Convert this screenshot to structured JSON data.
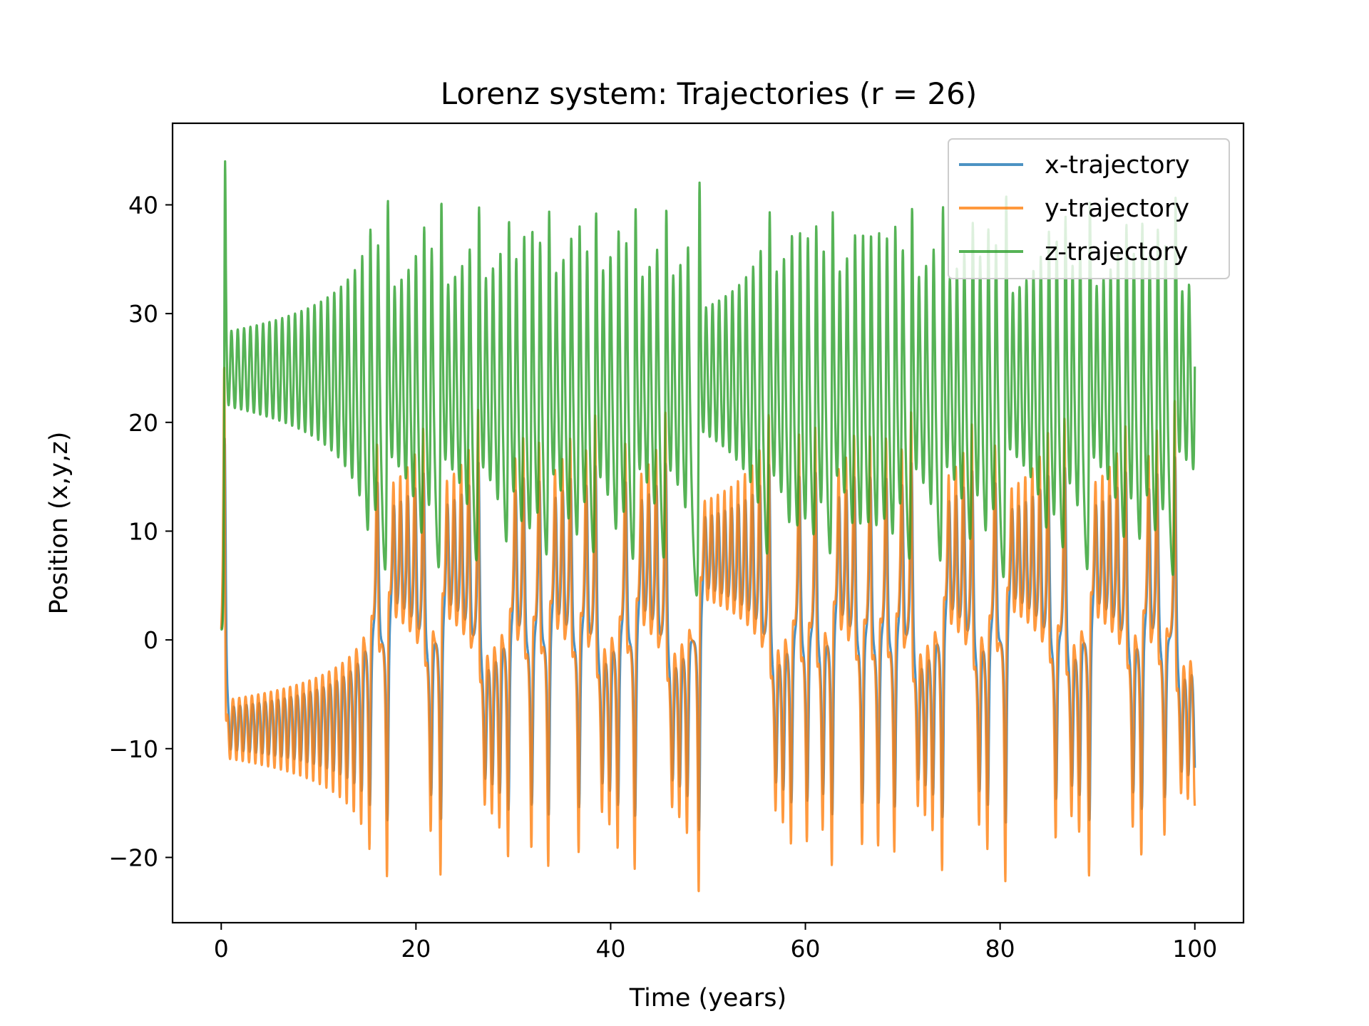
{
  "chart_data": {
    "type": "line",
    "title": "Lorenz system: Trajectories (r = 26)",
    "xlabel": "Time (years)",
    "ylabel": "Position (x,y,z)",
    "xlim": [
      -5,
      105
    ],
    "ylim": [
      -26,
      47.5
    ],
    "xticks": [
      0,
      20,
      40,
      60,
      80,
      100
    ],
    "yticks": [
      -20,
      -10,
      0,
      10,
      20,
      30,
      40
    ],
    "xtick_labels": [
      "0",
      "20",
      "40",
      "60",
      "80",
      "100"
    ],
    "ytick_labels": [
      "−20",
      "−10",
      "0",
      "10",
      "20",
      "30",
      "40"
    ],
    "grid": false,
    "legend_position": "top-right",
    "series": [
      {
        "name": "x-trajectory",
        "color": "#1f77b4"
      },
      {
        "name": "y-trajectory",
        "color": "#ff7f0e"
      },
      {
        "name": "z-trajectory",
        "color": "#2ca02c"
      }
    ],
    "t_range": [
      0,
      100
    ],
    "switch_times": [
      15.3,
      16.9,
      20.8,
      25.8,
      30.4,
      31.9,
      35.3,
      40.3,
      41.8,
      45.3,
      48.3,
      51.5,
      55.1,
      57.9,
      59.6,
      62.2,
      64.9,
      66.3,
      68.6,
      73.3,
      77.5,
      79.3,
      81.9,
      86.2,
      87.9,
      90.9,
      93.6,
      95.7,
      98.9
    ],
    "annotations_note": ""
  }
}
